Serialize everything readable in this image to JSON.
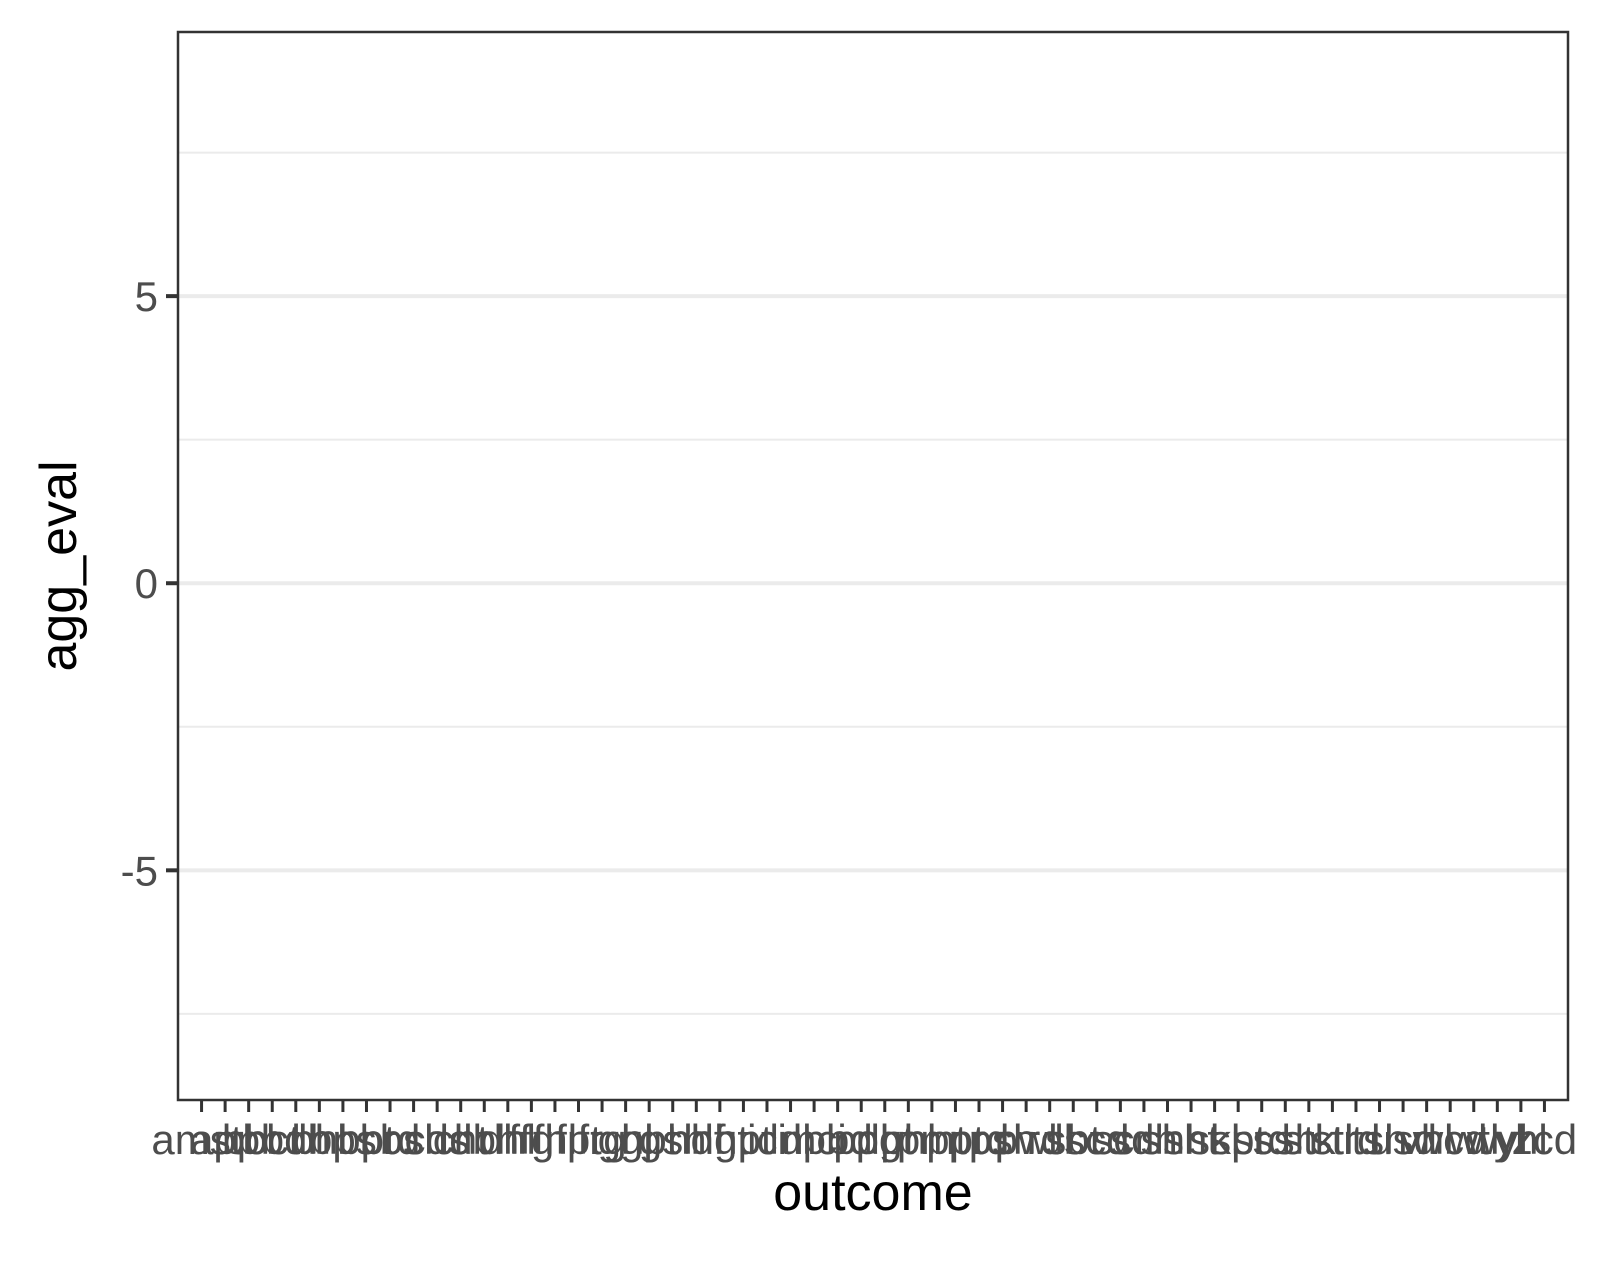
{
  "chart_data": {
    "type": "scatter",
    "title": "",
    "xlabel": "outcome",
    "ylabel": "agg_eval",
    "ylim": [
      -9,
      9.6
    ],
    "y_ticks": [
      "5",
      "0",
      "-5"
    ],
    "y_tick_values": [
      5,
      0,
      -5
    ],
    "y_minor_values": [
      7.5,
      2.5,
      -2.5,
      -7.5
    ],
    "categories": [
      "amstl",
      "app",
      "bcl",
      "bct",
      "bdh",
      "bhl",
      "bps",
      "bpt",
      "brd",
      "bsh",
      "cds",
      "cht",
      "dbh",
      "dhl",
      "ffg",
      "fhl",
      "fpt",
      "frg",
      "ghl",
      "gpt",
      "gsh",
      "hdf",
      "hgt",
      "hpt",
      "ici",
      "ldl",
      "mci",
      "pbd",
      "pdl",
      "pgt",
      "phl",
      "pmt",
      "ppt",
      "prd",
      "psh",
      "pwl",
      "rdl",
      "sbt",
      "scd",
      "scr",
      "sdh",
      "shl",
      "sht",
      "skl",
      "spt",
      "srd",
      "ssh",
      "stk",
      "stl",
      "trd",
      "tsh",
      "usd",
      "vhl",
      "wcd",
      "wtl",
      "wyl",
      "yhl",
      "zcd"
    ],
    "values": [],
    "grid": true,
    "legend": "none"
  }
}
